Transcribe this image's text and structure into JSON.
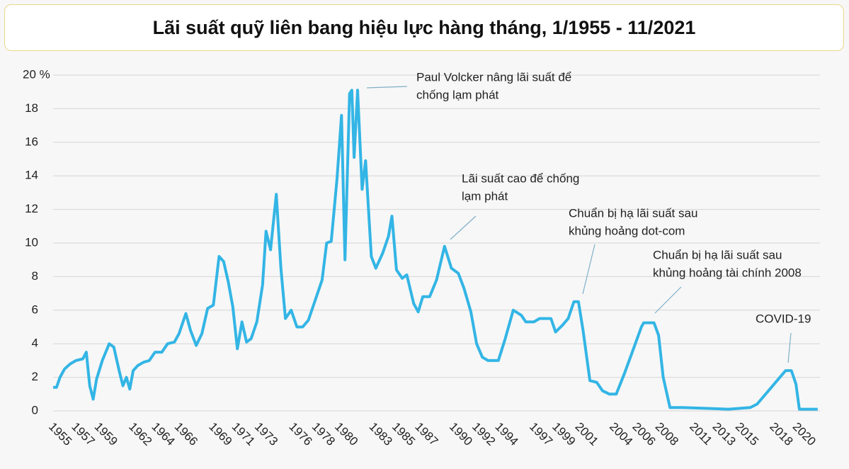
{
  "chart_data": {
    "type": "line",
    "title": "Lãi suất quỹ liên bang hiệu lực hàng tháng, 1/1955 - 11/2021",
    "series": [
      {
        "name": "Lãi suất quỹ liên bang",
        "color": "#33b5e5",
        "x": [
          1955.0,
          1955.3,
          1955.6,
          1956.0,
          1956.5,
          1957.0,
          1957.6,
          1957.9,
          1958.2,
          1958.5,
          1958.8,
          1959.3,
          1959.9,
          1960.3,
          1960.8,
          1961.1,
          1961.4,
          1961.7,
          1962.0,
          1962.4,
          1962.9,
          1963.4,
          1963.9,
          1964.5,
          1965.0,
          1965.6,
          1966.0,
          1966.6,
          1967.0,
          1967.5,
          1968.0,
          1968.5,
          1969.0,
          1969.5,
          1969.9,
          1970.3,
          1970.7,
          1971.1,
          1971.5,
          1971.9,
          1972.3,
          1972.8,
          1973.3,
          1973.6,
          1974.0,
          1974.5,
          1974.9,
          1975.3,
          1975.8,
          1976.3,
          1976.8,
          1977.3,
          1977.9,
          1978.5,
          1978.9,
          1979.3,
          1979.8,
          1980.2,
          1980.5,
          1980.9,
          1981.1,
          1981.3,
          1981.6,
          1982.0,
          1982.3,
          1982.8,
          1983.2,
          1983.8,
          1984.3,
          1984.6,
          1985.0,
          1985.5,
          1985.9,
          1986.5,
          1986.9,
          1987.3,
          1987.9,
          1988.5,
          1989.2,
          1989.8,
          1990.4,
          1990.9,
          1991.5,
          1992.0,
          1992.5,
          1993.0,
          1993.9,
          1994.5,
          1995.2,
          1995.9,
          1996.3,
          1997.0,
          1997.5,
          1998.5,
          1998.9,
          1999.5,
          2000.0,
          2000.5,
          2000.9,
          2001.3,
          2001.9,
          2002.5,
          2003.0,
          2003.6,
          2004.2,
          2004.9,
          2005.6,
          2006.4,
          2006.6,
          2007.5,
          2007.9,
          2008.3,
          2008.9,
          2010.0,
          2012.0,
          2014.0,
          2015.9,
          2016.5,
          2017.5,
          2018.5,
          2019.0,
          2019.5,
          2019.9,
          2020.2,
          2021.8
        ],
        "values": [
          1.4,
          1.4,
          2.0,
          2.5,
          2.8,
          3.0,
          3.1,
          3.5,
          1.5,
          0.7,
          1.9,
          3.0,
          4.0,
          3.8,
          2.3,
          1.5,
          2.0,
          1.3,
          2.4,
          2.7,
          2.9,
          3.0,
          3.5,
          3.5,
          4.0,
          4.1,
          4.6,
          5.8,
          4.8,
          3.9,
          4.6,
          6.1,
          6.3,
          9.2,
          8.9,
          7.7,
          6.2,
          3.7,
          5.3,
          4.1,
          4.3,
          5.3,
          7.5,
          10.7,
          9.6,
          12.9,
          8.5,
          5.5,
          6.0,
          5.0,
          5.0,
          5.4,
          6.6,
          7.8,
          10.0,
          10.1,
          13.8,
          17.6,
          9.0,
          18.9,
          19.1,
          15.1,
          19.1,
          13.2,
          14.9,
          9.2,
          8.5,
          9.4,
          10.4,
          11.6,
          8.4,
          7.9,
          8.1,
          6.4,
          5.9,
          6.8,
          6.8,
          7.8,
          9.8,
          8.5,
          8.2,
          7.3,
          5.9,
          4.0,
          3.2,
          3.0,
          3.0,
          4.3,
          6.0,
          5.7,
          5.3,
          5.3,
          5.5,
          5.5,
          4.7,
          5.1,
          5.5,
          6.5,
          6.5,
          4.8,
          1.8,
          1.7,
          1.2,
          1.0,
          1.0,
          2.2,
          3.5,
          5.0,
          5.25,
          5.25,
          4.5,
          2.0,
          0.2,
          0.2,
          0.15,
          0.1,
          0.2,
          0.4,
          1.2,
          2.0,
          2.4,
          2.4,
          1.6,
          0.1,
          0.1
        ]
      }
    ],
    "xlim": [
      1955,
      2022
    ],
    "xticks": [
      1955,
      1957,
      1959,
      1962,
      1964,
      1966,
      1969,
      1971,
      1973,
      1976,
      1978,
      1980,
      1983,
      1985,
      1987,
      1990,
      1992,
      1994,
      1997,
      1999,
      2001,
      2004,
      2006,
      2008,
      2011,
      2013,
      2015,
      2018,
      2020
    ],
    "ylim": [
      0,
      20
    ],
    "yticks": [
      0,
      2,
      4,
      6,
      8,
      10,
      12,
      14,
      16,
      18,
      {
        "value": 20,
        "label": "20 %"
      }
    ],
    "grid": true,
    "annotations": [
      {
        "lines": [
          "Paul Volcker nâng lãi suất để",
          "chống lạm phát"
        ]
      },
      {
        "lines": [
          "Lãi suất cao để chống",
          "lạm phát"
        ]
      },
      {
        "lines": [
          "Chuẩn bị hạ lãi suất sau",
          "khủng hoảng dot-com"
        ]
      },
      {
        "lines": [
          "Chuẩn bị hạ lãi suất sau",
          "khủng hoảng tài chính 2008"
        ]
      },
      {
        "lines": [
          "COVID-19"
        ]
      }
    ]
  }
}
